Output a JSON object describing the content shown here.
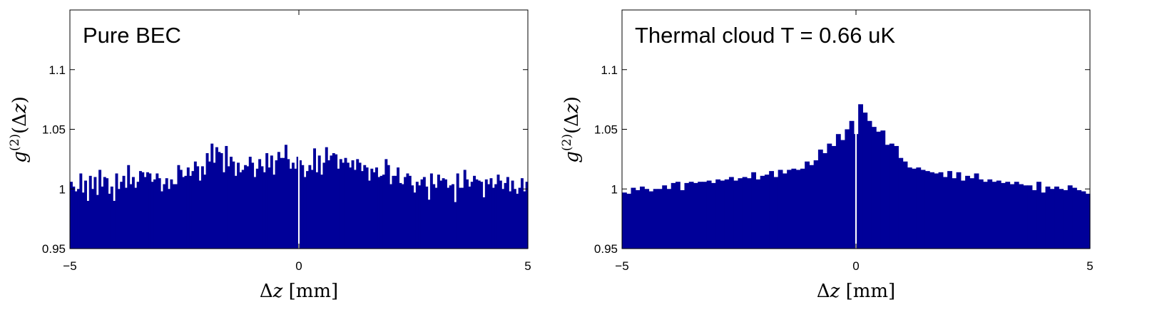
{
  "colors": {
    "bar": "#000099",
    "frame": "#000000",
    "center_line": "#ffffff"
  },
  "chart_data": [
    {
      "type": "bar",
      "title": "Pure BEC",
      "xlabel": "Δz [mm]",
      "ylabel": "g(2)(Δz)",
      "xlim": [
        -5,
        5
      ],
      "ylim": [
        0.95,
        1.15
      ],
      "xticks": [
        "−5",
        "0",
        "5"
      ],
      "yticks": [
        "0.95",
        "1",
        "1.05",
        "1.1"
      ],
      "ytick_values": [
        0.95,
        1.0,
        1.05,
        1.1
      ],
      "xtick_values": [
        -5,
        0,
        5
      ],
      "bin_range": [
        -5,
        5
      ],
      "values": [
        1.006,
        1.002,
        0.998,
        1.0,
        1.013,
        0.997,
        1.007,
        0.99,
        1.011,
        1.0,
        1.01,
        0.995,
        1.016,
        1.002,
        1.01,
        1.009,
        0.996,
        1.002,
        0.99,
        1.013,
        1.0,
        1.006,
        1.011,
        1.001,
        1.02,
        1.004,
        1.01,
        1.001,
        1.006,
        1.015,
        1.014,
        1.01,
        1.014,
        1.013,
        1.006,
        1.008,
        1.013,
        1.009,
        0.998,
        1.004,
        1.009,
        1.0,
        1.008,
        1.004,
        1.004,
        1.02,
        1.016,
        1.01,
        1.011,
        1.018,
        1.011,
        1.015,
        1.023,
        1.019,
        1.007,
        1.019,
        1.012,
        1.03,
        1.023,
        1.038,
        1.022,
        1.035,
        1.031,
        1.03,
        1.014,
        1.036,
        1.019,
        1.027,
        1.023,
        1.011,
        1.022,
        1.014,
        1.016,
        1.02,
        1.019,
        1.027,
        1.022,
        1.01,
        1.017,
        1.025,
        1.019,
        1.014,
        1.03,
        1.018,
        1.028,
        1.012,
        1.024,
        1.031,
        1.026,
        1.026,
        1.037,
        1.025,
        1.017,
        1.022,
        1.017,
        1.027,
        1.024,
        1.02,
        1.01,
        1.015,
        1.02,
        1.016,
        1.034,
        1.014,
        1.028,
        1.012,
        1.022,
        1.035,
        1.024,
        1.028,
        1.03,
        1.029,
        1.017,
        1.025,
        1.022,
        1.026,
        1.022,
        1.018,
        1.024,
        1.016,
        1.025,
        1.022,
        1.015,
        1.02,
        1.018,
        1.007,
        1.017,
        1.014,
        1.018,
        1.01,
        1.011,
        1.012,
        1.025,
        1.02,
        1.004,
        1.011,
        1.011,
        1.018,
        1.005,
        1.004,
        1.01,
        1.013,
        1.011,
        1.003,
        0.997,
        1.006,
        1.003,
        1.008,
        1.01,
        1.002,
        0.991,
        1.013,
        1.004,
        1.001,
        1.012,
        1.007,
        1.009,
        1.008,
        1.001,
        1.003,
        1.004,
        0.989,
        1.013,
        1.001,
        1.001,
        1.016,
        1.008,
        1.002,
        1.006,
        1.011,
        1.008,
        1.007,
        1.006,
        0.993,
        1.008,
        1.004,
        1.009,
        1.001,
        1.004,
        1.012,
        1.007,
        1.0,
        1.005,
        1.01,
        0.998,
        1.007,
        1.0,
        0.996,
        1.001,
        1.009,
        0.998,
        1.006
      ]
    },
    {
      "type": "bar",
      "title": "Thermal cloud T = 0.66 uK",
      "xlabel": "Δz [mm]",
      "ylabel": "g(2)(Δz)",
      "xlim": [
        -5,
        5
      ],
      "ylim": [
        0.95,
        1.15
      ],
      "xticks": [
        "−5",
        "0",
        "5"
      ],
      "yticks": [
        "0.95",
        "1",
        "1.05",
        "1.1"
      ],
      "ytick_values": [
        0.95,
        1.0,
        1.05,
        1.1
      ],
      "xtick_values": [
        -5,
        0,
        5
      ],
      "bin_range": [
        -5,
        5
      ],
      "values": [
        0.997,
        0.996,
        1.001,
        0.999,
        1.002,
        1.0,
        0.998,
        1.0,
        1.0,
        1.003,
        1.0,
        1.005,
        1.006,
        0.999,
        1.005,
        1.006,
        1.005,
        1.006,
        1.006,
        1.007,
        1.005,
        1.008,
        1.007,
        1.008,
        1.01,
        1.007,
        1.009,
        1.01,
        1.009,
        1.014,
        1.008,
        1.011,
        1.012,
        1.015,
        1.01,
        1.016,
        1.013,
        1.016,
        1.017,
        1.016,
        1.017,
        1.023,
        1.02,
        1.024,
        1.033,
        1.03,
        1.038,
        1.036,
        1.046,
        1.041,
        1.05,
        1.057,
        1.046,
        1.071,
        1.064,
        1.057,
        1.052,
        1.048,
        1.049,
        1.037,
        1.038,
        1.036,
        1.026,
        1.023,
        1.018,
        1.017,
        1.018,
        1.016,
        1.015,
        1.014,
        1.013,
        1.014,
        1.01,
        1.015,
        1.009,
        1.014,
        1.007,
        1.011,
        1.009,
        1.013,
        1.008,
        1.006,
        1.008,
        1.006,
        1.007,
        1.005,
        1.006,
        1.004,
        1.006,
        1.004,
        1.003,
        1.003,
        0.999,
        1.006,
        0.997,
        1.002,
        1.0,
        1.002,
        1.0,
        0.999,
        1.003,
        1.001,
        0.999,
        0.998,
        0.996
      ]
    }
  ]
}
